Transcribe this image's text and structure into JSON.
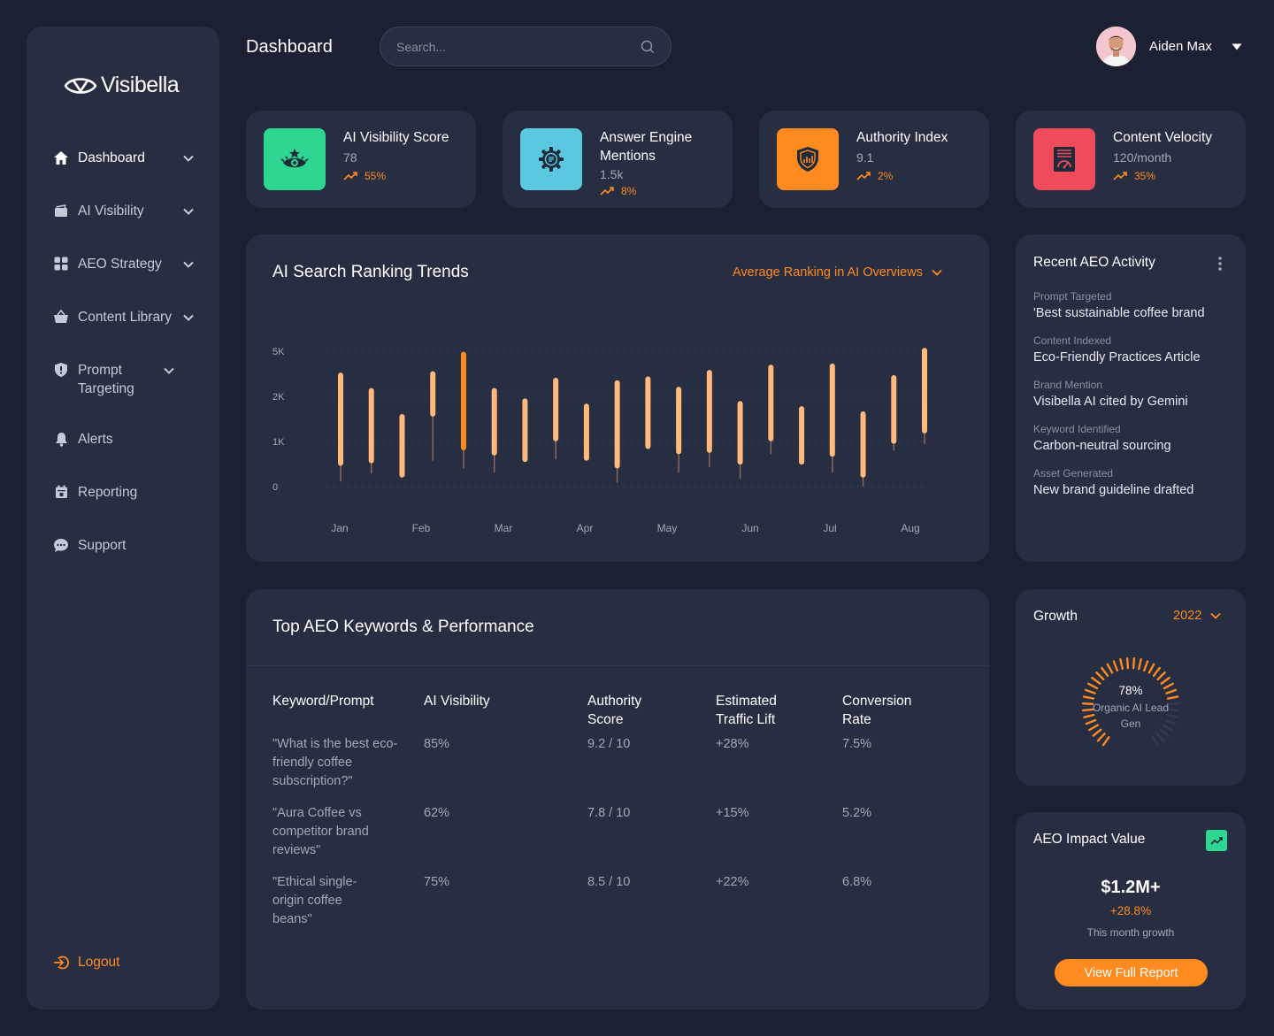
{
  "brand": {
    "name": "Visibella",
    "icon": "eye-logo-icon"
  },
  "sidebar": {
    "items": [
      {
        "label": "Dashboard",
        "icon": "home-icon",
        "has_chevron": true
      },
      {
        "label": "AI Visibility",
        "icon": "wallet-icon",
        "has_chevron": true
      },
      {
        "label": "AEO Strategy",
        "icon": "grid-icon",
        "has_chevron": true
      },
      {
        "label": "Content Library",
        "icon": "basket-icon",
        "has_chevron": true
      },
      {
        "label": "Prompt Targeting",
        "icon": "shield-icon",
        "has_chevron": true
      },
      {
        "label": "Alerts",
        "icon": "bell-icon",
        "has_chevron": false
      },
      {
        "label": "Reporting",
        "icon": "calendar-icon",
        "has_chevron": false
      },
      {
        "label": "Support",
        "icon": "chat-icon",
        "has_chevron": false
      }
    ],
    "logout_label": "Logout"
  },
  "header": {
    "title": "Dashboard",
    "search_placeholder": "Search...",
    "user_name": "Aiden Max"
  },
  "stats": [
    {
      "title": "AI Visibility Score",
      "value": "78",
      "trend": "55%",
      "color": "#2dd691",
      "icon": "eye-star-icon"
    },
    {
      "title": "Answer Engine Mentions",
      "value": "1.5k",
      "trend": "8%",
      "color": "#5cc8e0",
      "icon": "gear-icon"
    },
    {
      "title": "Authority Index",
      "value": "9.1",
      "trend": "2%",
      "color": "#ff8a1f",
      "icon": "shield-chart-icon"
    },
    {
      "title": "Content Velocity",
      "value": "120/month",
      "trend": "35%",
      "color": "#f04b5a",
      "icon": "speedometer-icon"
    }
  ],
  "ranking_chart": {
    "title": "AI Search Ranking Trends",
    "filter_label": "Average Ranking in AI Overviews"
  },
  "chart_data": {
    "type": "candlestick",
    "title": "AI Search Ranking Trends",
    "xlabel": "",
    "ylabel": "",
    "y_ticks": [
      "0",
      "1K",
      "2K",
      "5K"
    ],
    "x_ticks": [
      "Jan",
      "Feb",
      "Mar",
      "Apr",
      "May",
      "Jun",
      "Jul",
      "Aug"
    ],
    "candles": [
      {
        "high": 4.4,
        "low": 0.2,
        "open": 4.4,
        "close": 0.8
      },
      {
        "high": 3.8,
        "low": 0.5,
        "open": 3.8,
        "close": 0.9
      },
      {
        "high": 2.8,
        "low": 0.35,
        "open": 2.8,
        "close": 0.35
      },
      {
        "high": 4.45,
        "low": 1.0,
        "open": 4.45,
        "close": 2.7
      },
      {
        "high": 5.2,
        "low": 0.7,
        "open": 5.2,
        "close": 1.4
      },
      {
        "high": 3.8,
        "low": 0.55,
        "open": 3.8,
        "close": 1.2
      },
      {
        "high": 3.4,
        "low": 0.95,
        "open": 3.4,
        "close": 0.95
      },
      {
        "high": 4.2,
        "low": 1.05,
        "open": 4.2,
        "close": 1.75
      },
      {
        "high": 3.2,
        "low": 1.0,
        "open": 3.2,
        "close": 1.0
      },
      {
        "high": 4.1,
        "low": 0.15,
        "open": 4.1,
        "close": 0.7
      },
      {
        "high": 4.25,
        "low": 1.45,
        "open": 4.25,
        "close": 1.45
      },
      {
        "high": 3.85,
        "low": 0.55,
        "open": 3.85,
        "close": 1.25
      },
      {
        "high": 4.5,
        "low": 0.75,
        "open": 4.5,
        "close": 1.3
      },
      {
        "high": 3.3,
        "low": 0.3,
        "open": 3.3,
        "close": 0.85
      },
      {
        "high": 4.7,
        "low": 1.25,
        "open": 4.7,
        "close": 1.75
      },
      {
        "high": 3.1,
        "low": 0.85,
        "open": 3.1,
        "close": 0.85
      },
      {
        "high": 4.75,
        "low": 0.55,
        "open": 4.75,
        "close": 1.15
      },
      {
        "high": 2.9,
        "low": 0.0,
        "open": 2.9,
        "close": 0.35
      },
      {
        "high": 4.3,
        "low": 1.4,
        "open": 4.3,
        "close": 1.65
      },
      {
        "high": 5.35,
        "low": 1.65,
        "open": 5.35,
        "close": 2.05
      }
    ],
    "highlight_index": 4,
    "colors": {
      "candle": "#ffb97a",
      "highlight": "#ff8a1f",
      "wick": "#8a6a52"
    },
    "grid": true
  },
  "activity": {
    "title": "Recent AEO Activity",
    "items": [
      {
        "label": "Prompt Targeted",
        "value": "'Best sustainable coffee brand"
      },
      {
        "label": "Content Indexed",
        "value": "Eco-Friendly Practices Article"
      },
      {
        "label": "Brand Mention",
        "value": "Visibella AI cited by Gemini"
      },
      {
        "label": "Keyword Identified",
        "value": "Carbon-neutral sourcing"
      },
      {
        "label": "Asset Generated",
        "value": "New brand guideline drafted"
      }
    ]
  },
  "keywords": {
    "title": "Top AEO Keywords & Performance",
    "headers": [
      "Keyword/Prompt",
      "AI Visibility",
      "Authority Score",
      "Estimated Traffic Lift",
      "Conversion Rate"
    ],
    "rows": [
      [
        "\"What is the best eco-friendly coffee subscription?\"",
        "85%",
        "9.2 / 10",
        "+28%",
        "7.5%"
      ],
      [
        "\"Aura Coffee vs competitor brand reviews\"",
        "62%",
        "7.8 / 10",
        "+15%",
        "5.2%"
      ],
      [
        "\"Ethical single-origin coffee beans\"",
        "75%",
        "8.5 / 10",
        "+22%",
        "6.8%"
      ]
    ]
  },
  "growth": {
    "title": "Growth",
    "year": "2022",
    "percent": "78%",
    "label": "Organic AI Lead Gen",
    "fraction": 0.78
  },
  "impact": {
    "title": "AEO Impact Value",
    "value": "$1.2M+",
    "growth": "+28.8%",
    "subtitle": "This month growth",
    "button_label": "View Full Report"
  }
}
